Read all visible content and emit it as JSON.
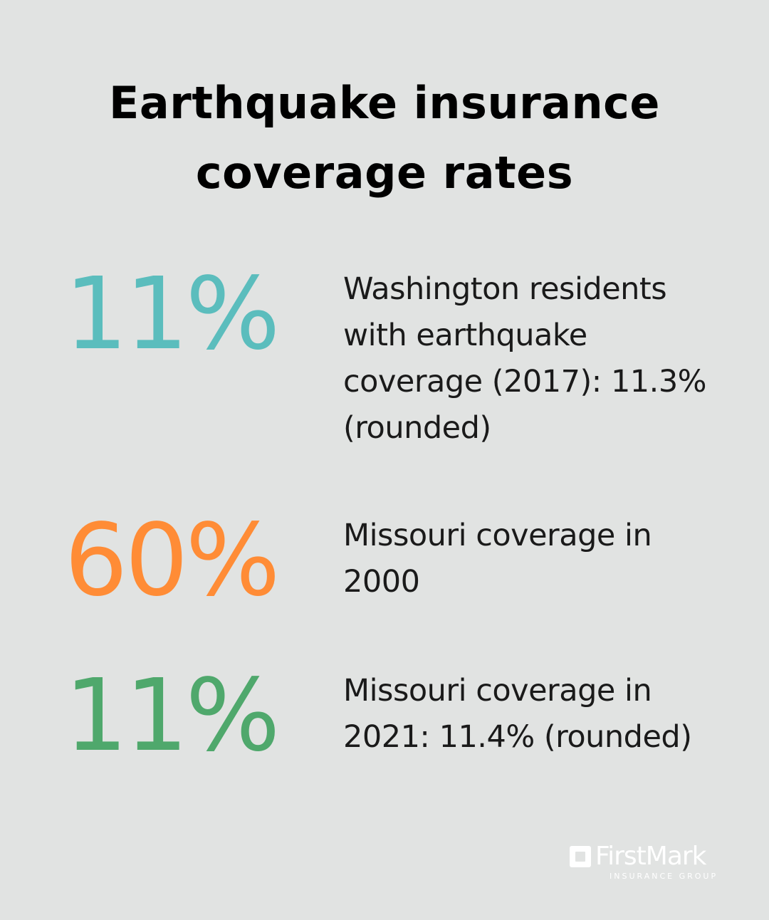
{
  "title_line1": "Earthquake insurance",
  "title_line2": "coverage rates",
  "stats": [
    {
      "value": "11%",
      "color": "#5bbdbd",
      "lines": [
        "Washington residents",
        "with earthquake",
        "coverage (2017): 11.3%",
        "(rounded)"
      ]
    },
    {
      "value": "60%",
      "color": "#ff8c36",
      "lines": [
        "Missouri coverage in",
        "2000"
      ]
    },
    {
      "value": "11%",
      "color": "#4fa86c",
      "lines": [
        "Missouri coverage in",
        "2021: 11.4% (rounded)"
      ]
    }
  ],
  "logo": {
    "name": "FirstMark",
    "subtitle": "INSURANCE GROUP"
  }
}
